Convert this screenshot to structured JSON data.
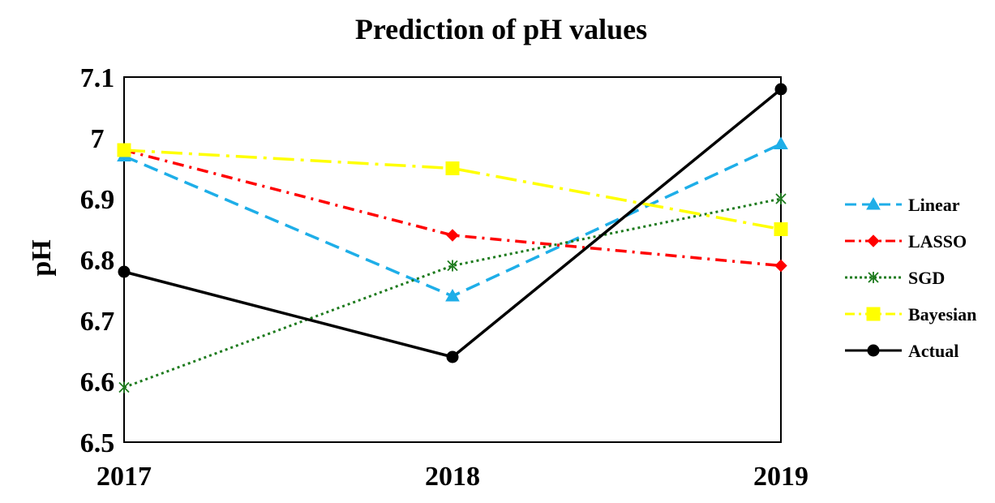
{
  "chart_data": {
    "type": "line",
    "title": "Prediction of pH values",
    "xlabel": "",
    "ylabel": "pH",
    "x": [
      "2017",
      "2018",
      "2019"
    ],
    "ylim": [
      6.5,
      7.1
    ],
    "yticks": [
      "6.5",
      "6.6",
      "6.7",
      "6.8",
      "6.9",
      "7",
      "7.1"
    ],
    "grid": false,
    "legend_position": "right",
    "series": [
      {
        "name": "Linear",
        "values": [
          6.97,
          6.74,
          6.99
        ],
        "color": "#1EAEE8",
        "dash": "dashed",
        "marker": "triangle"
      },
      {
        "name": "LASSO",
        "values": [
          6.98,
          6.84,
          6.79
        ],
        "color": "#FF0000",
        "dash": "dash-dot",
        "marker": "diamond"
      },
      {
        "name": "SGD",
        "values": [
          6.59,
          6.79,
          6.9
        ],
        "color": "#1E7B1E",
        "dash": "dotted",
        "marker": "star"
      },
      {
        "name": "Bayesian",
        "values": [
          6.98,
          6.95,
          6.85
        ],
        "color": "#FFFF00",
        "dash": "long-dash-dot",
        "marker": "square"
      },
      {
        "name": "Actual",
        "values": [
          6.78,
          6.64,
          7.08
        ],
        "color": "#000000",
        "dash": "solid",
        "marker": "circle"
      }
    ]
  }
}
